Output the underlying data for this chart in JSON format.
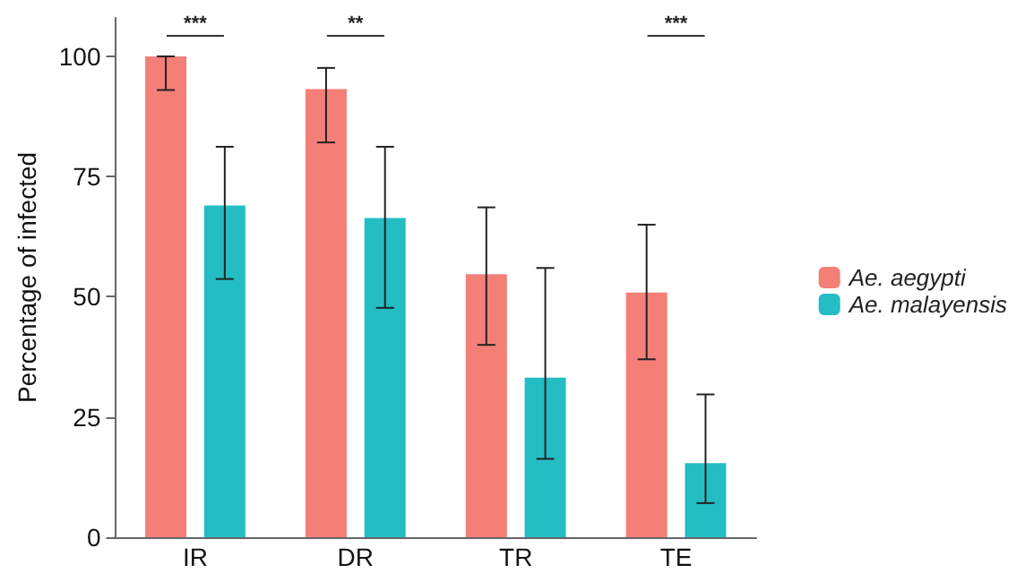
{
  "chart_data": {
    "type": "bar",
    "ylabel": "Percentage of infected",
    "categories": [
      "IR",
      "DR",
      "TR",
      "TE"
    ],
    "series": [
      {
        "name": "Ae. aegypti",
        "color": "#f47f77",
        "values": [
          100,
          93.2,
          54.7,
          50.9
        ],
        "errors": [
          [
            93,
            100
          ],
          [
            82.1,
            97.6
          ],
          [
            40,
            68.6
          ],
          [
            37,
            65
          ]
        ]
      },
      {
        "name": "Ae. malayensis",
        "color": "#24bdc4",
        "values": [
          69,
          66.4,
          33.2,
          15.4
        ],
        "errors": [
          [
            53.7,
            81.2
          ],
          [
            47.7,
            81.2
          ],
          [
            16.3,
            56
          ],
          [
            7.1,
            29.7
          ]
        ]
      }
    ],
    "ylim": [
      0,
      108
    ],
    "yticks": [
      0,
      25,
      50,
      75,
      100
    ],
    "grid": false,
    "legend": "right",
    "annotations": [
      "***",
      "**",
      "***"
    ]
  }
}
